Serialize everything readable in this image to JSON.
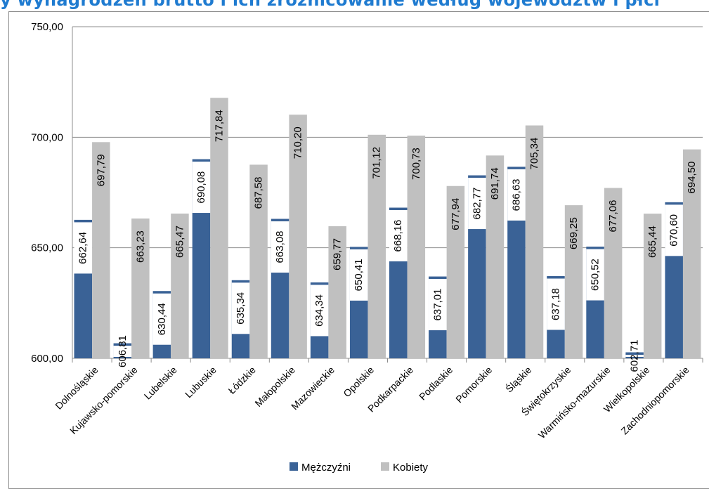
{
  "chart_data": {
    "type": "bar",
    "title": "",
    "xlabel": "",
    "ylabel": "",
    "ylim": [
      600,
      750
    ],
    "yticks": [
      "600,00",
      "650,00",
      "700,00",
      "750,00"
    ],
    "grid": true,
    "legend_position": "bottom",
    "categories": [
      "Dolnośląskie",
      "Kujawsko-pomorskie",
      "Lubelskie",
      "Lubuskie",
      "Łódzkie",
      "Małopolskie",
      "Mazowieckie",
      "Opolskie",
      "Podkarpackie",
      "Podlaskie",
      "Pomorskie",
      "Śląskie",
      "Świętokrzyskie",
      "Warmińsko-mazurskie",
      "Wielkopolskie",
      "Zachodniopomorskie"
    ],
    "series": [
      {
        "name": "Mężczyźni",
        "color": "#3a6296",
        "values": [
          662.64,
          606.81,
          630.44,
          690.08,
          635.34,
          663.08,
          634.34,
          650.41,
          668.16,
          637.01,
          682.77,
          686.63,
          637.18,
          650.52,
          602.71,
          670.6
        ],
        "labels": [
          "662,64",
          "606,81",
          "630,44",
          "690,08",
          "635,34",
          "663,08",
          "634,34",
          "650,41",
          "668,16",
          "637,01",
          "682,77",
          "686,63",
          "637,18",
          "650,52",
          "602,71",
          "670,60"
        ]
      },
      {
        "name": "Kobiety",
        "color": "#c0c0c0",
        "values": [
          697.79,
          663.23,
          665.47,
          717.84,
          687.58,
          710.2,
          659.77,
          701.12,
          700.73,
          677.94,
          691.74,
          705.34,
          669.25,
          677.06,
          665.44,
          694.5
        ],
        "labels": [
          "697,79",
          "663,23",
          "665,47",
          "717,84",
          "687,58",
          "710,20",
          "659,77",
          "701,12",
          "700,73",
          "677,94",
          "691,74",
          "705,34",
          "669,25",
          "677,06",
          "665,44",
          "694,50"
        ]
      }
    ]
  },
  "header": {
    "title_fragment": "y wynagrodzeń brutto i ich zróżnicowanie według województw i płci"
  }
}
